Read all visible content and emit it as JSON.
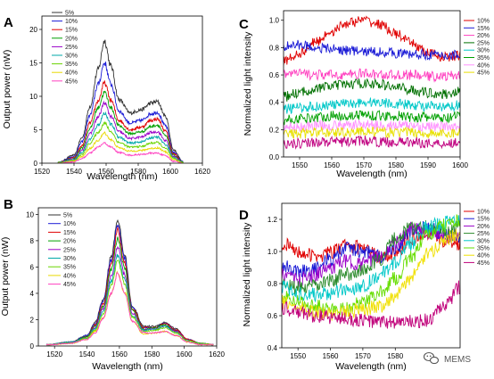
{
  "chart_data": [
    {
      "panel_label": "A",
      "type": "line",
      "xlabel": "Wavelength (nm)",
      "ylabel": "Output power (nW)",
      "xlim": [
        1520,
        1620
      ],
      "ylim": [
        0,
        22
      ],
      "xticks": [
        1520,
        1540,
        1560,
        1580,
        1600,
        1620
      ],
      "yticks": [
        0,
        5,
        10,
        15,
        20
      ],
      "legend_position": "top-left",
      "x": [
        1530,
        1540,
        1545,
        1550,
        1555,
        1559,
        1563,
        1568,
        1575,
        1582,
        1588,
        1592,
        1597,
        1602,
        1608
      ],
      "series": [
        {
          "name": "5%",
          "color": "#333333",
          "values": [
            0.1,
            1.2,
            3.8,
            8.5,
            14.0,
            18.3,
            14.5,
            9.5,
            7.5,
            8.0,
            9.0,
            9.2,
            7.0,
            2.0,
            0.2
          ]
        },
        {
          "name": "10%",
          "color": "#1a1ad6",
          "values": [
            0.1,
            1.0,
            3.2,
            7.2,
            11.8,
            15.0,
            11.8,
            7.8,
            6.0,
            6.4,
            7.4,
            7.6,
            5.6,
            1.6,
            0.2
          ]
        },
        {
          "name": "15%",
          "color": "#e00000",
          "values": [
            0.1,
            0.8,
            2.6,
            6.0,
            9.3,
            12.0,
            9.4,
            6.4,
            5.0,
            5.4,
            6.4,
            6.6,
            4.8,
            1.4,
            0.1
          ]
        },
        {
          "name": "20%",
          "color": "#00a000",
          "values": [
            0.1,
            0.7,
            2.3,
            5.2,
            8.3,
            10.6,
            8.3,
            5.6,
            4.4,
            4.7,
            5.5,
            5.7,
            4.1,
            1.2,
            0.1
          ]
        },
        {
          "name": "25%",
          "color": "#9a00c8",
          "values": [
            0.1,
            0.6,
            1.9,
            4.4,
            6.9,
            9.0,
            7.0,
            4.7,
            3.7,
            3.9,
            4.6,
            4.7,
            3.4,
            1.0,
            0.1
          ]
        },
        {
          "name": "30%",
          "color": "#00a8a8",
          "values": [
            0.1,
            0.5,
            1.6,
            3.6,
            5.7,
            7.5,
            5.8,
            3.9,
            3.0,
            3.2,
            3.8,
            3.9,
            2.8,
            0.8,
            0.1
          ]
        },
        {
          "name": "35%",
          "color": "#6ad400",
          "values": [
            0.1,
            0.4,
            1.3,
            3.0,
            4.6,
            6.0,
            4.7,
            3.1,
            2.4,
            2.5,
            3.0,
            3.1,
            2.2,
            0.7,
            0.1
          ]
        },
        {
          "name": "40%",
          "color": "#e8d800",
          "values": [
            0.0,
            0.3,
            1.0,
            2.2,
            3.4,
            4.5,
            3.5,
            2.3,
            1.8,
            1.9,
            2.2,
            2.3,
            1.7,
            0.5,
            0.0
          ]
        },
        {
          "name": "45%",
          "color": "#ff40c0",
          "values": [
            0.0,
            0.2,
            0.7,
            1.5,
            2.4,
            3.0,
            2.4,
            1.6,
            1.2,
            1.3,
            1.5,
            1.5,
            1.1,
            0.3,
            0.0
          ]
        }
      ]
    },
    {
      "panel_label": "B",
      "type": "line",
      "xlabel": "Wavelength (nm)",
      "ylabel": "Output power (nW)",
      "xlim": [
        1510,
        1620
      ],
      "ylim": [
        0,
        10.5
      ],
      "xticks": [
        1520,
        1540,
        1560,
        1580,
        1600,
        1620
      ],
      "yticks": [
        0,
        2,
        4,
        6,
        8,
        10
      ],
      "legend_position": "top-left",
      "x": [
        1515,
        1530,
        1540,
        1545,
        1550,
        1555,
        1559,
        1563,
        1568,
        1575,
        1582,
        1588,
        1595,
        1602,
        1610,
        1618
      ],
      "series": [
        {
          "name": "5%",
          "color": "#333333",
          "values": [
            0.1,
            0.3,
            0.8,
            1.8,
            3.5,
            6.8,
            9.6,
            7.0,
            3.0,
            1.5,
            1.5,
            1.8,
            1.3,
            0.5,
            0.2,
            0.1
          ]
        },
        {
          "name": "10%",
          "color": "#1a1ad6",
          "values": [
            0.1,
            0.3,
            0.8,
            1.7,
            3.4,
            6.5,
            9.2,
            6.7,
            2.9,
            1.4,
            1.4,
            1.7,
            1.2,
            0.5,
            0.2,
            0.1
          ]
        },
        {
          "name": "15%",
          "color": "#e00000",
          "values": [
            0.1,
            0.3,
            0.7,
            1.6,
            3.2,
            6.2,
            8.8,
            6.4,
            2.8,
            1.4,
            1.4,
            1.7,
            1.2,
            0.5,
            0.2,
            0.1
          ]
        },
        {
          "name": "20%",
          "color": "#00a000",
          "values": [
            0.1,
            0.3,
            0.7,
            1.5,
            3.0,
            5.8,
            8.2,
            6.0,
            2.7,
            1.3,
            1.4,
            1.6,
            1.1,
            0.4,
            0.2,
            0.1
          ]
        },
        {
          "name": "25%",
          "color": "#9a00c8",
          "values": [
            0.1,
            0.3,
            0.6,
            1.4,
            2.8,
            5.3,
            7.5,
            5.5,
            2.5,
            1.2,
            1.3,
            1.5,
            1.1,
            0.4,
            0.2,
            0.1
          ]
        },
        {
          "name": "30%",
          "color": "#00a8a8",
          "values": [
            0.1,
            0.3,
            0.6,
            1.3,
            2.6,
            4.9,
            6.9,
            5.1,
            2.3,
            1.2,
            1.3,
            1.5,
            1.0,
            0.4,
            0.2,
            0.1
          ]
        },
        {
          "name": "35%",
          "color": "#6ad400",
          "values": [
            0.1,
            0.2,
            0.6,
            1.2,
            2.4,
            4.6,
            6.5,
            4.8,
            2.2,
            1.1,
            1.2,
            1.4,
            1.0,
            0.4,
            0.2,
            0.1
          ]
        },
        {
          "name": "40%",
          "color": "#e8d800",
          "values": [
            0.1,
            0.2,
            0.5,
            1.1,
            2.1,
            4.0,
            5.6,
            4.1,
            1.9,
            0.9,
            1.0,
            1.1,
            0.8,
            0.3,
            0.1,
            0.1
          ]
        },
        {
          "name": "45%",
          "color": "#ff40c0",
          "values": [
            0.1,
            0.2,
            0.5,
            1.0,
            2.1,
            4.0,
            5.5,
            4.1,
            1.9,
            1.0,
            1.0,
            1.1,
            0.8,
            0.3,
            0.1,
            0.1
          ]
        }
      ]
    },
    {
      "panel_label": "C",
      "type": "line",
      "xlabel": "Wavelength (nm)",
      "ylabel": "Normalized light intensity",
      "xlim": [
        1545,
        1600
      ],
      "ylim": [
        0,
        1.07
      ],
      "xticks": [
        1550,
        1560,
        1570,
        1580,
        1590,
        1600
      ],
      "yticks": [
        0.0,
        0.2,
        0.4,
        0.6,
        0.8,
        1.0
      ],
      "legend_position": "right-outside",
      "x": [
        1545,
        1550,
        1555,
        1560,
        1565,
        1570,
        1575,
        1580,
        1585,
        1590,
        1595,
        1600
      ],
      "series": [
        {
          "name": "10%",
          "color": "#e00000",
          "values": [
            0.7,
            0.76,
            0.84,
            0.92,
            0.98,
            1.0,
            0.97,
            0.9,
            0.83,
            0.76,
            0.73,
            0.74
          ]
        },
        {
          "name": "15%",
          "color": "#1a1ad6",
          "values": [
            0.81,
            0.82,
            0.8,
            0.79,
            0.78,
            0.77,
            0.77,
            0.76,
            0.75,
            0.75,
            0.74,
            0.75
          ]
        },
        {
          "name": "20%",
          "color": "#ff40c0",
          "values": [
            0.61,
            0.61,
            0.6,
            0.6,
            0.6,
            0.61,
            0.6,
            0.6,
            0.6,
            0.59,
            0.59,
            0.6
          ]
        },
        {
          "name": "25%",
          "color": "#007000",
          "values": [
            0.44,
            0.47,
            0.5,
            0.52,
            0.53,
            0.54,
            0.53,
            0.51,
            0.49,
            0.47,
            0.46,
            0.48
          ]
        },
        {
          "name": "30%",
          "color": "#00c8c8",
          "values": [
            0.35,
            0.36,
            0.37,
            0.38,
            0.39,
            0.4,
            0.4,
            0.39,
            0.38,
            0.37,
            0.36,
            0.38
          ]
        },
        {
          "name": "35%",
          "color": "#00a000",
          "values": [
            0.27,
            0.28,
            0.29,
            0.3,
            0.3,
            0.31,
            0.3,
            0.3,
            0.29,
            0.29,
            0.28,
            0.3
          ]
        },
        {
          "name": "40%",
          "color": "#ff90ff",
          "values": [
            0.22,
            0.22,
            0.23,
            0.23,
            0.23,
            0.24,
            0.23,
            0.23,
            0.23,
            0.22,
            0.22,
            0.23
          ]
        },
        {
          "name": "45%",
          "color": "#e8e000",
          "values": [
            0.17,
            0.17,
            0.18,
            0.18,
            0.18,
            0.19,
            0.18,
            0.18,
            0.18,
            0.17,
            0.17,
            0.18
          ]
        },
        {
          "name": "",
          "color": "#c00080",
          "values": [
            0.1,
            0.1,
            0.11,
            0.11,
            0.11,
            0.12,
            0.11,
            0.11,
            0.11,
            0.1,
            0.1,
            0.11
          ]
        }
      ]
    },
    {
      "panel_label": "D",
      "type": "line",
      "xlabel": "Wavelength (nm)",
      "ylabel": "Normalized light intensity",
      "xlim": [
        1545,
        1600
      ],
      "ylim": [
        0.4,
        1.3
      ],
      "xticks": [
        1550,
        1560,
        1570,
        1580
      ],
      "yticks": [
        0.4,
        0.6,
        0.8,
        1.0,
        1.2
      ],
      "legend_position": "right-outside",
      "x": [
        1545,
        1550,
        1555,
        1560,
        1565,
        1570,
        1575,
        1580,
        1585,
        1590,
        1595,
        1600
      ],
      "series": [
        {
          "name": "10%",
          "color": "#e00000",
          "values": [
            1.05,
            1.0,
            0.97,
            0.99,
            1.04,
            1.02,
            0.97,
            0.99,
            1.08,
            1.1,
            1.07,
            1.05
          ]
        },
        {
          "name": "15%",
          "color": "#1a1ad6",
          "values": [
            0.92,
            0.88,
            0.89,
            0.95,
            1.02,
            1.0,
            0.97,
            1.02,
            1.12,
            1.15,
            1.1,
            1.08
          ]
        },
        {
          "name": "20%",
          "color": "#9a00c8",
          "values": [
            0.85,
            0.82,
            0.85,
            0.9,
            0.94,
            0.92,
            0.97,
            1.05,
            1.14,
            1.12,
            1.1,
            1.1
          ]
        },
        {
          "name": "25%",
          "color": "#2a8a2a",
          "values": [
            0.8,
            0.77,
            0.78,
            0.82,
            0.86,
            0.88,
            0.95,
            1.08,
            1.15,
            1.16,
            1.12,
            1.15
          ]
        },
        {
          "name": "30%",
          "color": "#00c8c8",
          "values": [
            0.78,
            0.74,
            0.73,
            0.74,
            0.76,
            0.79,
            0.85,
            0.93,
            1.05,
            1.15,
            1.18,
            1.2
          ]
        },
        {
          "name": "35%",
          "color": "#66dd00",
          "values": [
            0.73,
            0.69,
            0.66,
            0.64,
            0.65,
            0.68,
            0.74,
            0.83,
            0.97,
            1.1,
            1.16,
            1.2
          ]
        },
        {
          "name": "40%",
          "color": "#f0e000",
          "values": [
            0.68,
            0.65,
            0.62,
            0.61,
            0.62,
            0.64,
            0.66,
            0.72,
            0.84,
            0.98,
            1.07,
            1.12
          ]
        },
        {
          "name": "45%",
          "color": "#c0007a",
          "values": [
            0.65,
            0.62,
            0.6,
            0.59,
            0.58,
            0.57,
            0.56,
            0.56,
            0.56,
            0.57,
            0.65,
            0.78
          ]
        }
      ]
    }
  ],
  "watermark": {
    "icon": "wechat-icon",
    "text": "MEMS"
  }
}
